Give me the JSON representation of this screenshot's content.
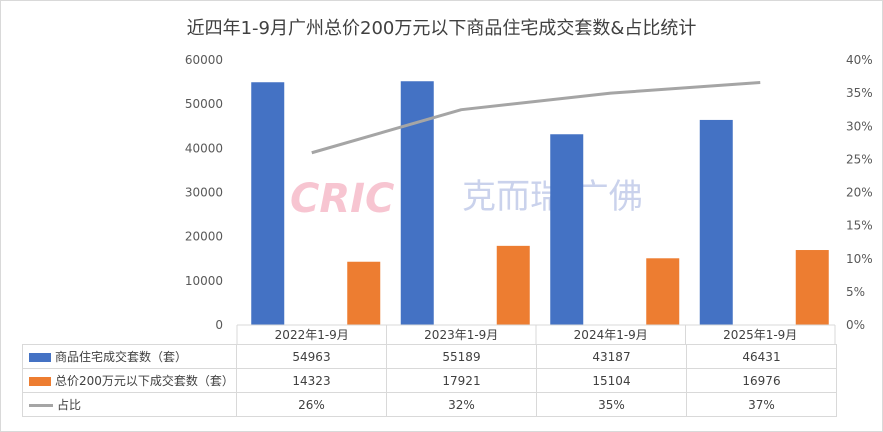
{
  "colors": {
    "series1": "#4472c4",
    "series2": "#ed7d31",
    "line": "#a5a5a5",
    "grid": "#d9d9d9",
    "watermark_red": "#e85a7a",
    "watermark_blue": "#7b8fcf"
  },
  "watermark": {
    "brand": "CRIC",
    "text": "克而瑞·广佛"
  },
  "chart_data": {
    "type": "bar",
    "title": "近四年1-9月广州总价200万元以下商品住宅成交套数&占比统计",
    "categories": [
      "2022年1-9月",
      "2023年1-9月",
      "2024年1-9月",
      "2025年1-9月"
    ],
    "y_axis": {
      "min": 0,
      "max": 60000,
      "step": 10000,
      "ticks": [
        "0",
        "10000",
        "20000",
        "30000",
        "40000",
        "50000",
        "60000"
      ]
    },
    "y2_axis": {
      "min": 0,
      "max": 40,
      "step": 5,
      "unit": "%",
      "ticks": [
        "0%",
        "5%",
        "10%",
        "15%",
        "20%",
        "25%",
        "30%",
        "35%",
        "40%"
      ]
    },
    "grid": false,
    "legend": "data-table",
    "series": [
      {
        "name": "商品住宅成交套数（套）",
        "kind": "bar",
        "axis": "left",
        "values": [
          54963,
          55189,
          43187,
          46431
        ],
        "labels": [
          "54963",
          "55189",
          "43187",
          "46431"
        ]
      },
      {
        "name": "总价200万元以下成交套数（套）",
        "kind": "bar",
        "axis": "left",
        "values": [
          14323,
          17921,
          15104,
          16976
        ],
        "labels": [
          "14323",
          "17921",
          "15104",
          "16976"
        ]
      },
      {
        "name": "占比",
        "kind": "line",
        "axis": "right",
        "values": [
          26,
          32.5,
          35,
          36.6
        ],
        "labels": [
          "26%",
          "32%",
          "35%",
          "37%"
        ]
      }
    ]
  }
}
